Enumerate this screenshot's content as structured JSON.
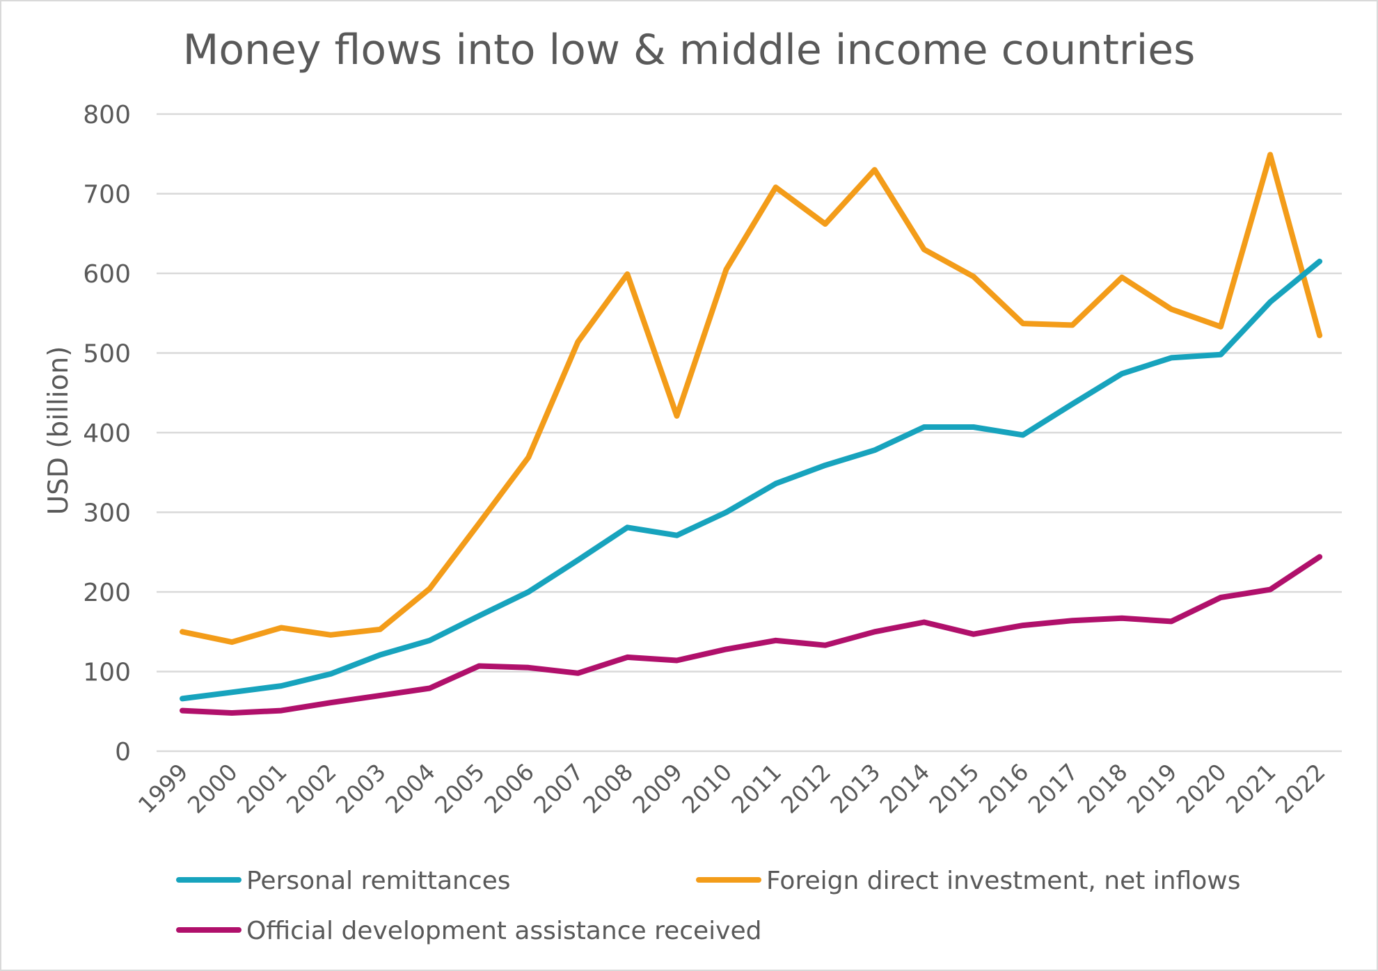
{
  "chart_data": {
    "type": "line",
    "title": "Money flows into low & middle income countries",
    "xlabel": "",
    "ylabel": "USD (billion)",
    "ylim": [
      0,
      800
    ],
    "yticks": [
      0,
      100,
      200,
      300,
      400,
      500,
      600,
      700,
      800
    ],
    "grid": true,
    "legend_position": "bottom",
    "categories": [
      "1999",
      "2000",
      "2001",
      "2002",
      "2003",
      "2004",
      "2005",
      "2006",
      "2007",
      "2008",
      "2009",
      "2010",
      "2011",
      "2012",
      "2013",
      "2014",
      "2015",
      "2016",
      "2017",
      "2018",
      "2019",
      "2020",
      "2021",
      "2022"
    ],
    "series": [
      {
        "name": "Personal remittances",
        "color": "#17a3bd",
        "values": [
          66,
          74,
          82,
          97,
          121,
          139,
          170,
          200,
          240,
          281,
          271,
          300,
          336,
          359,
          378,
          407,
          407,
          397,
          436,
          474,
          494,
          498,
          564,
          615
        ]
      },
      {
        "name": "Foreign direct investment, net inflows",
        "color": "#f39c19",
        "values": [
          150,
          137,
          155,
          146,
          153,
          204,
          286,
          369,
          514,
          599,
          421,
          605,
          708,
          662,
          730,
          630,
          596,
          537,
          535,
          595,
          555,
          533,
          749,
          522
        ]
      },
      {
        "name": "Official development assistance received",
        "color": "#b0106b",
        "values": [
          51,
          48,
          51,
          61,
          70,
          79,
          107,
          105,
          98,
          118,
          114,
          128,
          139,
          133,
          150,
          162,
          147,
          158,
          164,
          167,
          163,
          193,
          203,
          244
        ]
      }
    ]
  }
}
